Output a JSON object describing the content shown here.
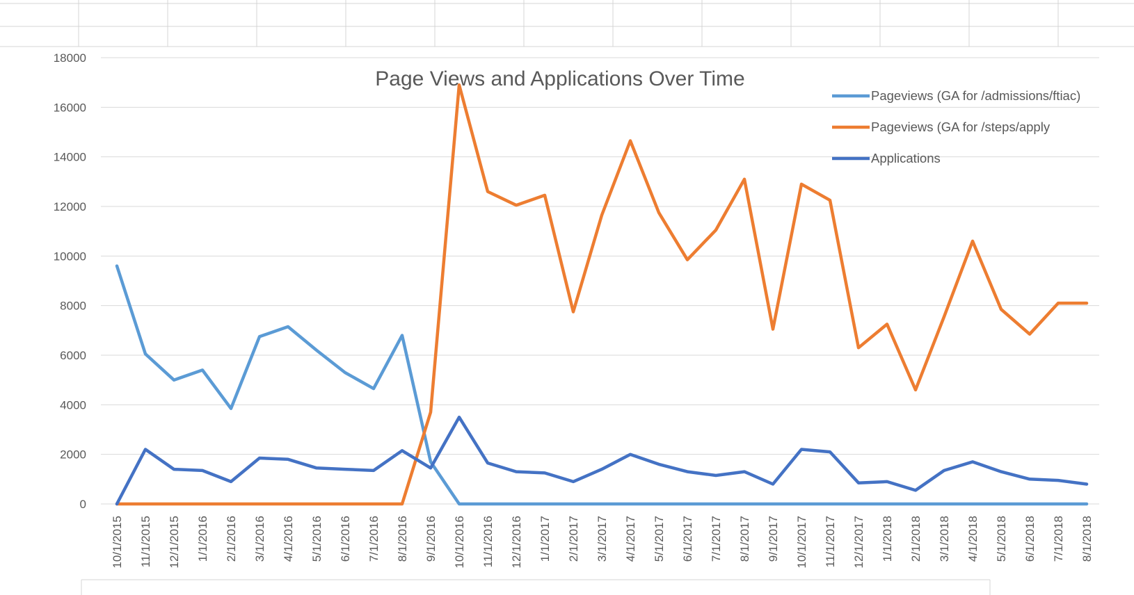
{
  "chart_data": {
    "type": "line",
    "title": "Page Views and Applications Over Time",
    "xlabel": "",
    "ylabel": "",
    "ylim": [
      0,
      18000
    ],
    "yticks": [
      0,
      2000,
      4000,
      6000,
      8000,
      10000,
      12000,
      14000,
      16000,
      18000
    ],
    "grid": true,
    "legend_position": "top-right",
    "categories": [
      "10/1/2015",
      "11/1/2015",
      "12/1/2015",
      "1/1/2016",
      "2/1/2016",
      "3/1/2016",
      "4/1/2016",
      "5/1/2016",
      "6/1/2016",
      "7/1/2016",
      "8/1/2016",
      "9/1/2016",
      "10/1/2016",
      "11/1/2016",
      "12/1/2016",
      "1/1/2017",
      "2/1/2017",
      "3/1/2017",
      "4/1/2017",
      "5/1/2017",
      "6/1/2017",
      "7/1/2017",
      "8/1/2017",
      "9/1/2017",
      "10/1/2017",
      "11/1/2017",
      "12/1/2017",
      "1/1/2018",
      "2/1/2018",
      "3/1/2018",
      "4/1/2018",
      "5/1/2018",
      "6/1/2018",
      "7/1/2018",
      "8/1/2018"
    ],
    "series": [
      {
        "name": "Pageviews (GA for /admissions/ftiac)",
        "color": "#5B9BD5",
        "values": [
          9600,
          6050,
          5000,
          5400,
          3850,
          6750,
          7150,
          6200,
          5300,
          4650,
          6800,
          1700,
          0,
          0,
          0,
          0,
          0,
          0,
          0,
          0,
          0,
          0,
          0,
          0,
          0,
          0,
          0,
          0,
          0,
          0,
          0,
          0,
          0,
          0,
          0
        ]
      },
      {
        "name": "Pageviews (GA for /steps/apply",
        "color": "#ED7D31",
        "values": [
          0,
          0,
          0,
          0,
          0,
          0,
          0,
          0,
          0,
          0,
          0,
          3700,
          16900,
          12600,
          12050,
          12450,
          7750,
          11650,
          14650,
          11750,
          9850,
          11050,
          13100,
          7050,
          12900,
          12250,
          6300,
          7250,
          4600,
          7550,
          10600,
          7850,
          6850,
          8100,
          8100
        ]
      },
      {
        "name": "Applications",
        "color": "#4472C4",
        "values": [
          0,
          2200,
          1400,
          1350,
          900,
          1850,
          1800,
          1450,
          1400,
          1350,
          2150,
          1450,
          3500,
          1650,
          1300,
          1250,
          900,
          1400,
          2000,
          1600,
          1300,
          1150,
          1300,
          800,
          2200,
          2100,
          850,
          900,
          550,
          1350,
          1700,
          1300,
          1000,
          950,
          800
        ]
      }
    ]
  }
}
